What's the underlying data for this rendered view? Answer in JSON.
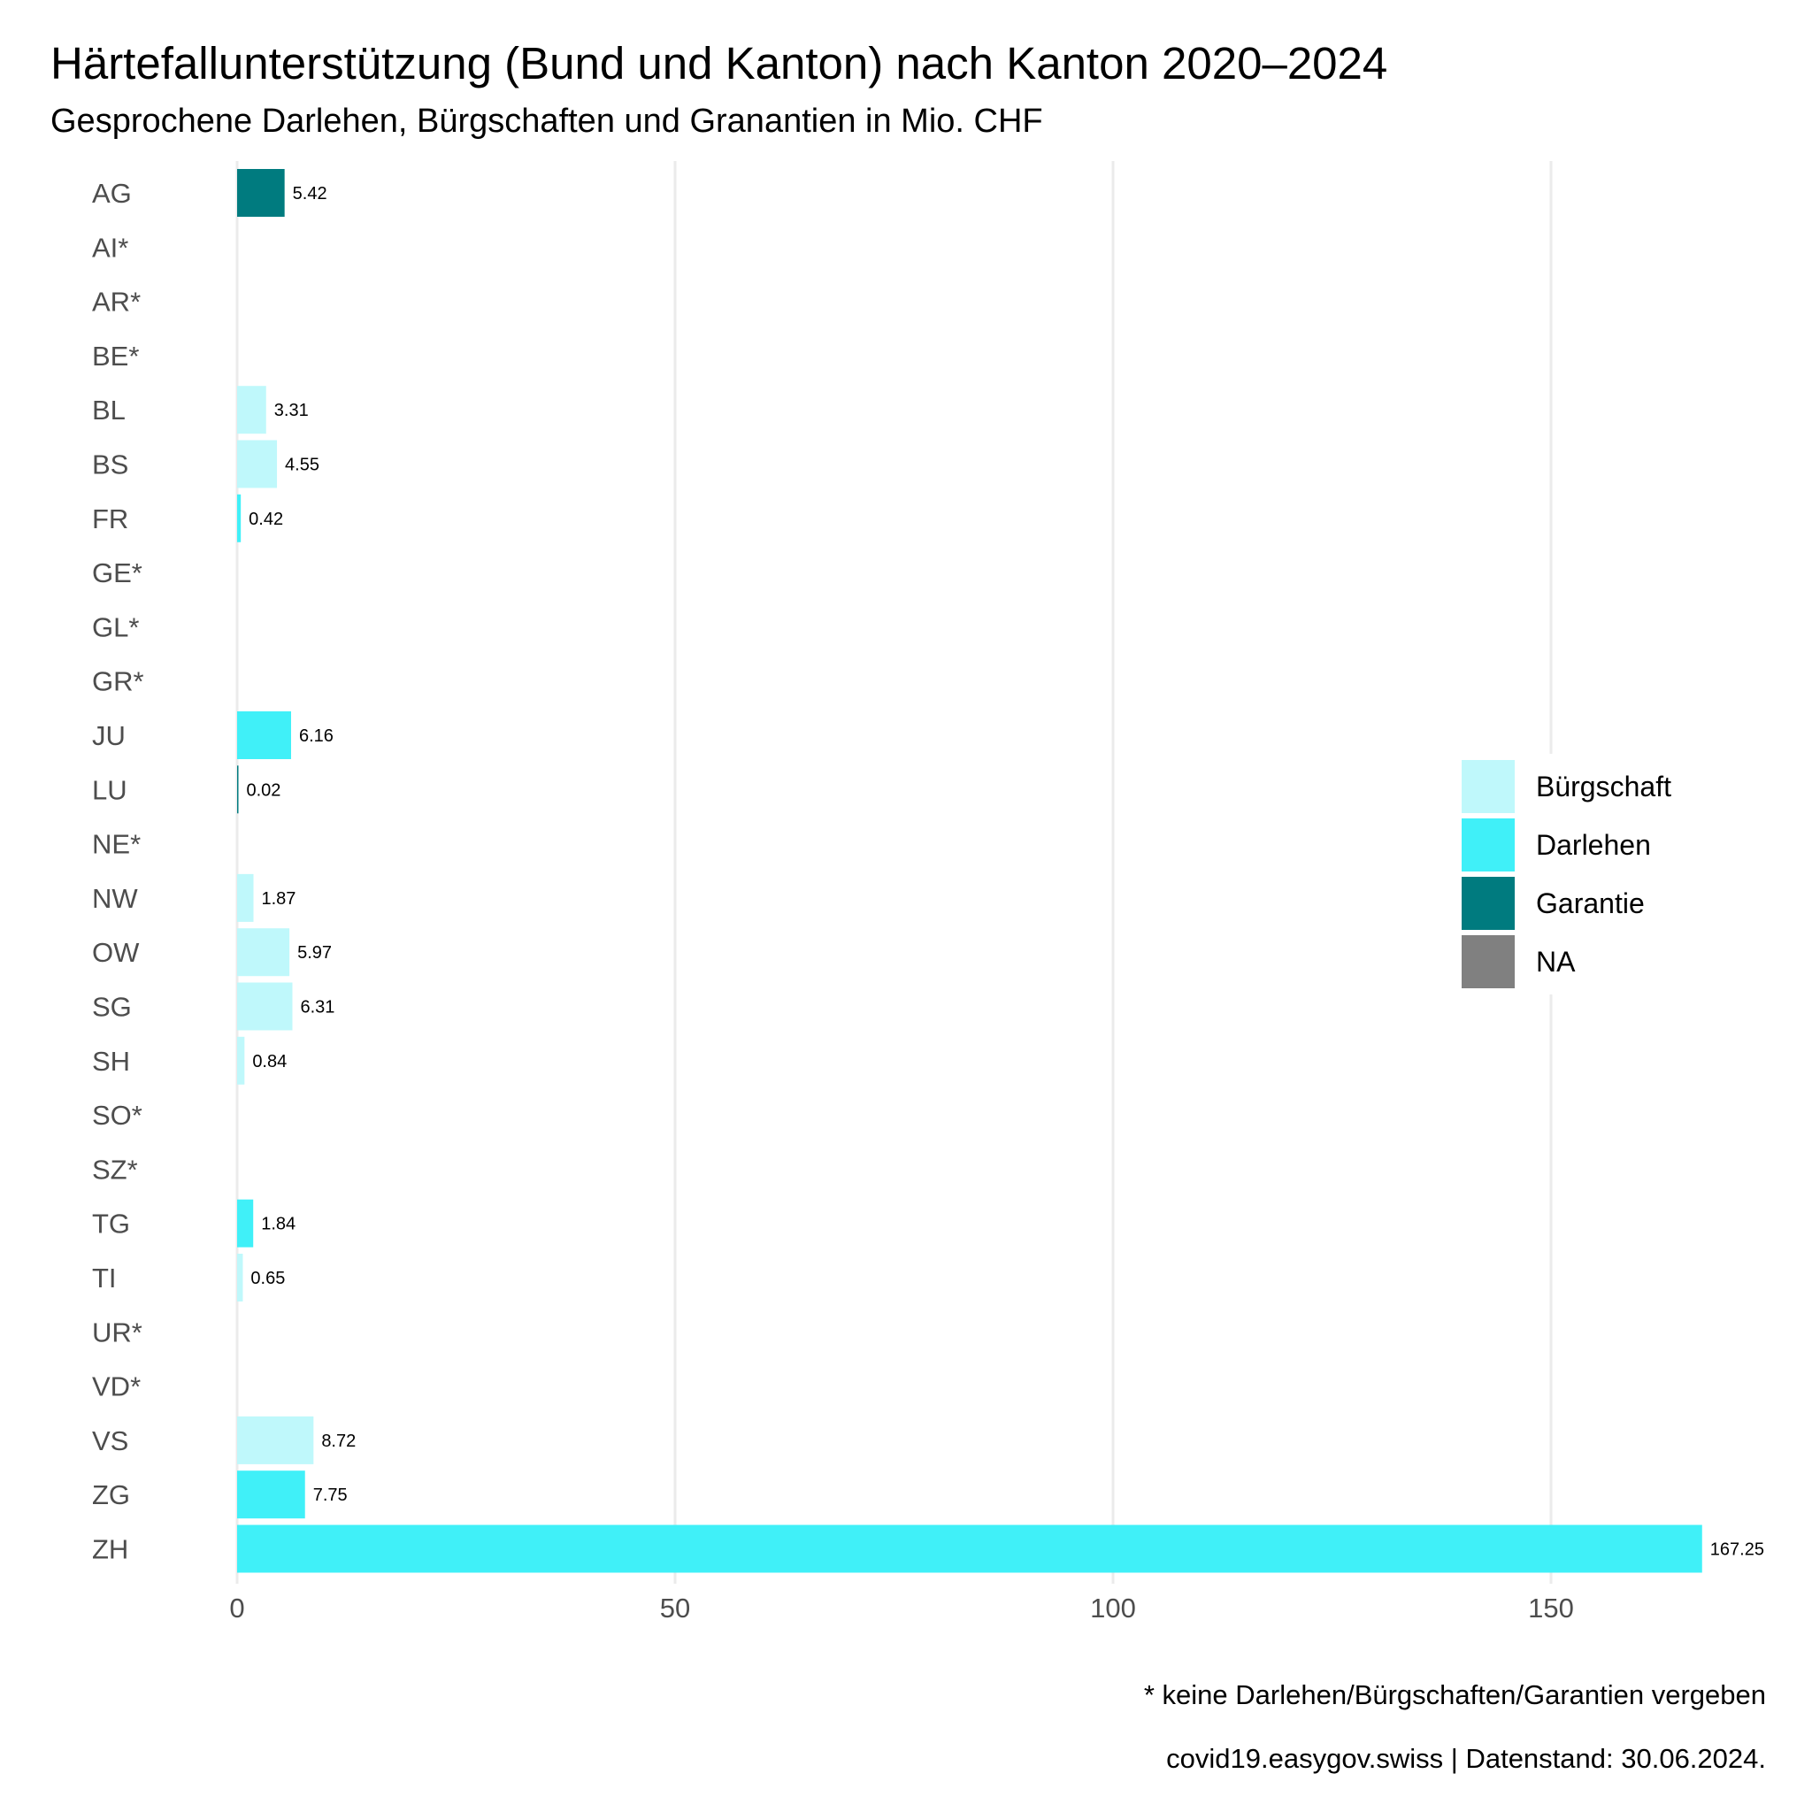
{
  "title": "Härtefallunterstützung (Bund und Kanton) nach Kanton 2020–2024",
  "subtitle": "Gesprochene Darlehen, Bürgschaften und Granantien in Mio. CHF",
  "caption_note": "* keine Darlehen/Bürgschaften/Garantien vergeben",
  "caption_source": "covid19.easygov.swiss | Datenstand: 30.06.2024.",
  "colors": {
    "Bürgschaft": "#bff8fb",
    "Darlehen": "#40f0f8",
    "Garantie": "#007b7f",
    "NA": "#808080",
    "grid": "#ebebeb",
    "tick_text": "#4d4d4d"
  },
  "chart_data": {
    "type": "bar",
    "orientation": "horizontal",
    "categories": [
      "AG",
      "AI*",
      "AR*",
      "BE*",
      "BL",
      "BS",
      "FR",
      "GE*",
      "GL*",
      "GR*",
      "JU",
      "LU",
      "NE*",
      "NW",
      "OW",
      "SG",
      "SH",
      "SO*",
      "SZ*",
      "TG",
      "TI",
      "UR*",
      "VD*",
      "VS",
      "ZG",
      "ZH"
    ],
    "values": [
      5.42,
      null,
      null,
      null,
      3.31,
      4.55,
      0.42,
      null,
      null,
      null,
      6.16,
      0.02,
      null,
      1.87,
      5.97,
      6.31,
      0.84,
      null,
      null,
      1.84,
      0.65,
      null,
      null,
      8.72,
      7.75,
      167.25
    ],
    "labels": [
      "5.42",
      "",
      "",
      "",
      "3.31",
      "4.55",
      "0.42",
      "",
      "",
      "",
      "6.16",
      "0.02",
      "",
      "1.87",
      "5.97",
      "6.31",
      "0.84",
      "",
      "",
      "1.84",
      "0.65",
      "",
      "",
      "8.72",
      "7.75",
      "167.25"
    ],
    "fill": [
      "Garantie",
      "NA",
      "NA",
      "NA",
      "Bürgschaft",
      "Bürgschaft",
      "Darlehen",
      "NA",
      "NA",
      "NA",
      "Darlehen",
      "Garantie",
      "NA",
      "Bürgschaft",
      "Bürgschaft",
      "Bürgschaft",
      "Bürgschaft",
      "NA",
      "NA",
      "Darlehen",
      "Bürgschaft",
      "NA",
      "NA",
      "Bürgschaft",
      "Darlehen",
      "Darlehen"
    ],
    "legend": [
      "Bürgschaft",
      "Darlehen",
      "Garantie",
      "NA"
    ],
    "legend_position": "right",
    "xlim": [
      0,
      176
    ],
    "xticks": [
      0,
      50,
      100,
      150
    ],
    "xtick_labels": [
      "0",
      "50",
      "100",
      "150"
    ],
    "grid": "vertical major",
    "xlabel": "",
    "ylabel": ""
  }
}
